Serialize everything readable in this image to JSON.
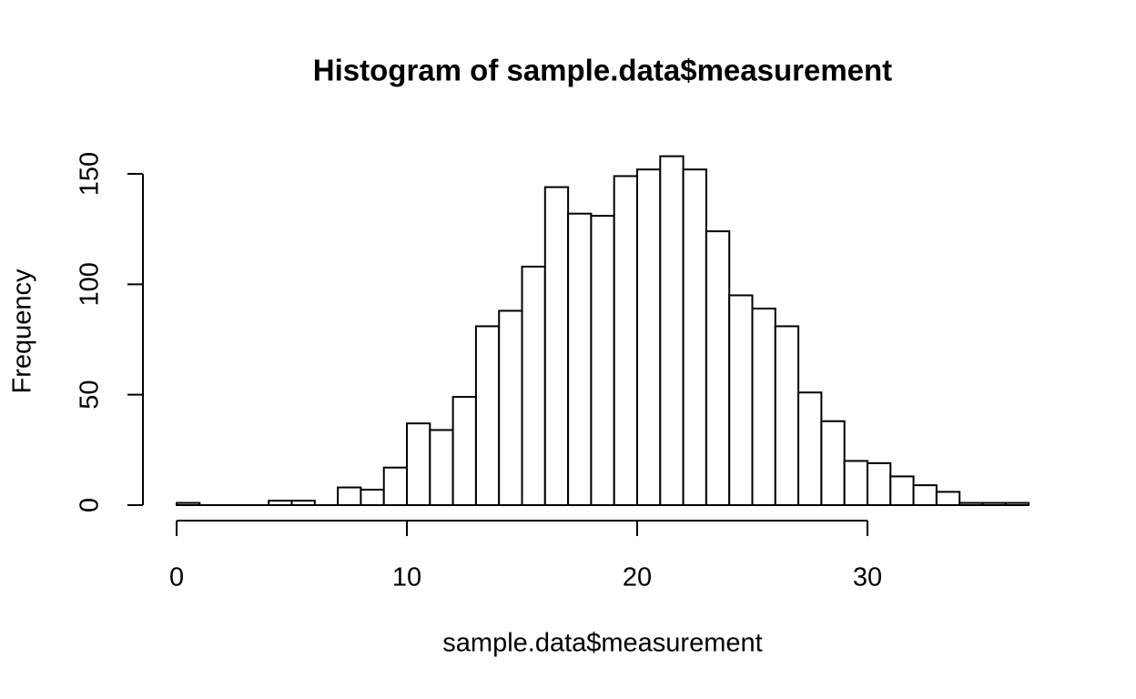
{
  "chart_data": {
    "type": "histogram",
    "title": "Histogram of sample.data$measurement",
    "x_label": "sample.data$measurement",
    "y_label": "Frequency",
    "bins": [
      0,
      1,
      2,
      3,
      4,
      5,
      6,
      7,
      8,
      9,
      10,
      11,
      12,
      13,
      14,
      15,
      16,
      17,
      18,
      19,
      20,
      21,
      22,
      23,
      24,
      25,
      26,
      27,
      28,
      29,
      30,
      31,
      32,
      33,
      34,
      35,
      36,
      37
    ],
    "values": [
      1,
      0,
      0,
      0,
      2,
      2,
      0,
      8,
      7,
      17,
      37,
      34,
      49,
      81,
      88,
      108,
      144,
      132,
      131,
      149,
      152,
      158,
      152,
      124,
      95,
      89,
      81,
      51,
      38,
      20,
      19,
      13,
      9,
      6,
      1,
      1,
      1
    ],
    "color": "#ffffff",
    "xlim": [
      -1.48,
      38.48
    ],
    "ylim": [
      -6.32,
      164.32
    ],
    "xticks": [
      0,
      10,
      20,
      30
    ],
    "yticks": [
      0,
      50,
      100,
      150
    ]
  }
}
